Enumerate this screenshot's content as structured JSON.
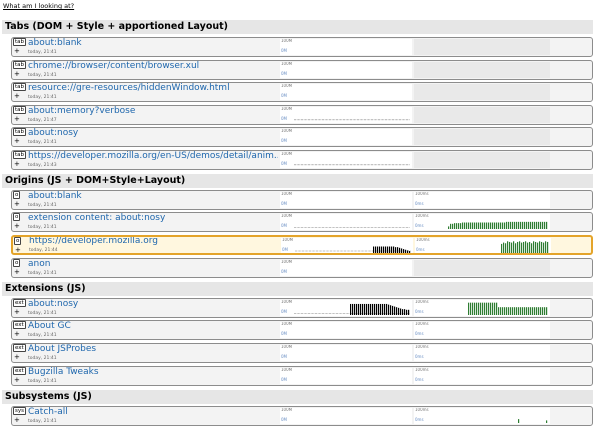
{
  "help_link": "What am I looking at?",
  "colors": {
    "link": "#1f67ad",
    "bars_memory": "#000000",
    "bars_cpu": "#2e7d32",
    "highlight_border": "#e4a42a",
    "section_bg": "#e6e6e6"
  },
  "graph_labels": {
    "mem_top": "100M",
    "mem_bot": "0M",
    "cpu_top": "100ms",
    "cpu_bot": "0ms"
  },
  "sections": {
    "tabs": {
      "title": "Tabs (DOM + Style + apportioned Layout)",
      "rows": [
        {
          "tag": "tab",
          "name": "about:blank",
          "time": "today, 21:41",
          "mem_bars": [],
          "mem_level": 0,
          "cpu_bars": null
        },
        {
          "tag": "tab",
          "name": "chrome://browser/content/browser.xul",
          "time": "today, 21:41",
          "mem_bars": [],
          "mem_level": 0,
          "cpu_bars": null
        },
        {
          "tag": "tab",
          "name": "resource://gre-resources/hiddenWindow.html",
          "time": "today, 21:41",
          "mem_bars": [],
          "mem_level": 0,
          "cpu_bars": null
        },
        {
          "tag": "tab",
          "name": "about:memory?verbose",
          "time": "today, 21:47",
          "mem_bars": [],
          "mem_level": 0.12,
          "cpu_bars": null
        },
        {
          "tag": "tab",
          "name": "about:nosy",
          "time": "today, 21:41",
          "mem_bars": [],
          "mem_level": 0,
          "cpu_bars": null
        },
        {
          "tag": "tab",
          "name": "https://developer.mozilla.org/en-US/demos/detail/anim...",
          "time": "today, 21:43",
          "mem_bars": [],
          "mem_level": 0.12,
          "cpu_bars": null
        }
      ]
    },
    "origins": {
      "title": "Origins (JS + DOM+Style+Layout)",
      "rows": [
        {
          "tag": "o",
          "name": "about:blank",
          "time": "today, 21:41",
          "mem_bars": [],
          "mem_level": 0,
          "cpu_bars": []
        },
        {
          "tag": "o",
          "name": "extension content: about:nosy",
          "time": "today, 21:41",
          "mem_bars": [],
          "mem_level": 0.05,
          "cpu_bars": [
            0.2,
            0.4,
            0.4,
            0.45,
            0.45,
            0.45,
            0.45,
            0.5,
            0.5,
            0.5,
            0.5,
            0.5,
            0.5,
            0.5,
            0.5,
            0.5,
            0.5,
            0.5,
            0.5,
            0.5,
            0.5,
            0.5,
            0.5,
            0.5,
            0.5,
            0.5,
            0.5,
            0.5,
            0.5,
            0.55,
            0.55,
            0.55,
            0.55,
            0.55,
            0.55,
            0.55,
            0.55,
            0.55,
            0.55,
            0.55,
            0.55,
            0.55,
            0.55,
            0.55,
            0.55,
            0.55,
            0.55,
            0.55,
            0.55,
            0.55
          ]
        },
        {
          "tag": "o",
          "name": "https://developer.mozilla.org",
          "time": "today, 21:44",
          "highlight": true,
          "mem_bars": [
            0.5,
            0.5,
            0.5,
            0.5,
            0.5,
            0.5,
            0.5,
            0.5,
            0.5,
            0.5,
            0.5,
            0.45,
            0.45,
            0.4,
            0.35,
            0.3,
            0.25,
            0.2,
            0.15
          ],
          "mem_level": 0.1,
          "cpu_bars": [
            0.7,
            0.8,
            0.75,
            0.9,
            0.85,
            0.8,
            0.9,
            0.75,
            0.85,
            0.9,
            0.8,
            0.85,
            0.9,
            0.8,
            0.85,
            0.75,
            0.9,
            0.85,
            0.8,
            0.9,
            0.85,
            0.8,
            0.9,
            0.85
          ]
        },
        {
          "tag": "o",
          "name": "anon",
          "time": "today, 21:41",
          "mem_bars": [],
          "mem_level": 0,
          "cpu_bars": null
        }
      ]
    },
    "extensions": {
      "title": "Extensions (JS)",
      "rows": [
        {
          "tag": "ext",
          "name": "about:nosy",
          "time": "today, 21:41",
          "mem_bars": [
            0.85,
            0.85,
            0.85,
            0.85,
            0.85,
            0.85,
            0.85,
            0.85,
            0.85,
            0.85,
            0.85,
            0.85,
            0.85,
            0.85,
            0.85,
            0.85,
            0.85,
            0.85,
            0.85,
            0.8,
            0.75,
            0.7,
            0.65,
            0.6,
            0.55,
            0.5,
            0.45,
            0.45,
            0.4,
            0.4
          ],
          "mem_level": 0.05,
          "cpu_bars": [
            0.95,
            0.95,
            0.95,
            0.95,
            0.95,
            0.95,
            0.95,
            0.95,
            0.95,
            0.95,
            0.95,
            0.95,
            0.95,
            0.95,
            0.95,
            0.6,
            0.6,
            0.6,
            0.6,
            0.6,
            0.6,
            0.6,
            0.6,
            0.6,
            0.6,
            0.6,
            0.6,
            0.6,
            0.6,
            0.6,
            0.6,
            0.6,
            0.6,
            0.6,
            0.6,
            0.6,
            0.6,
            0.6,
            0.6,
            0.6
          ]
        },
        {
          "tag": "ext",
          "name": "About GC",
          "time": "today, 21:41",
          "mem_bars": [],
          "mem_level": 0,
          "cpu_bars": []
        },
        {
          "tag": "ext",
          "name": "About JSProbes",
          "time": "today, 21:41",
          "mem_bars": [],
          "mem_level": 0,
          "cpu_bars": []
        },
        {
          "tag": "ext",
          "name": "Bugzilla Tweaks",
          "time": "today, 21:41",
          "mem_bars": [],
          "mem_level": 0,
          "cpu_bars": []
        }
      ]
    },
    "subsystems": {
      "title": "Subsystems (JS)",
      "rows": [
        {
          "tag": "sys",
          "name": "Catch-all",
          "time": "today, 21:41",
          "mem_bars": [],
          "mem_level": 0,
          "cpu_bars": [
            0,
            0,
            0,
            0,
            0,
            0,
            0,
            0,
            0,
            0,
            0,
            0.3,
            0,
            0,
            0,
            0,
            0,
            0,
            0,
            0,
            0,
            0,
            0,
            0,
            0,
            0.2
          ]
        }
      ]
    }
  }
}
